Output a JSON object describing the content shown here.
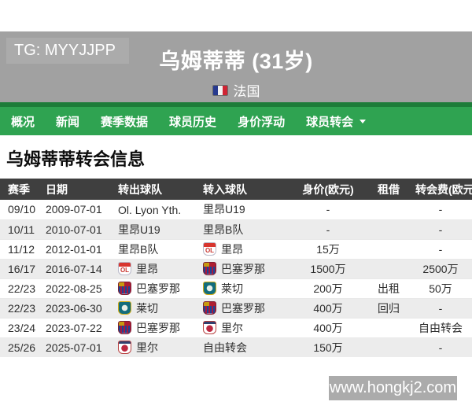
{
  "watermarks": {
    "top_left": "TG: MYYJJPP",
    "bottom_right": "www.hongkj2.com"
  },
  "player_header": {
    "name_and_age": "乌姆蒂蒂 (31岁)",
    "nationality": "法国",
    "flag_icon": "france-flag"
  },
  "nav": {
    "items": [
      {
        "label": "概况",
        "has_dropdown": false
      },
      {
        "label": "新闻",
        "has_dropdown": false
      },
      {
        "label": "赛季数据",
        "has_dropdown": false
      },
      {
        "label": "球员历史",
        "has_dropdown": false
      },
      {
        "label": "身价浮动",
        "has_dropdown": false
      },
      {
        "label": "球员转会",
        "has_dropdown": true
      }
    ]
  },
  "section_title": "乌姆蒂蒂转会信息",
  "table": {
    "columns": [
      "赛季",
      "日期",
      "转出球队",
      "转入球队",
      "身价(欧元)",
      "租借",
      "转会费(欧元)"
    ],
    "rows": [
      {
        "season": "09/10",
        "date": "2009-07-01",
        "from_team": "Ol. Lyon Yth.",
        "from_badge": null,
        "to_team": "里昂U19",
        "to_badge": null,
        "market_value": "-",
        "loan": "",
        "fee": "-"
      },
      {
        "season": "10/11",
        "date": "2010-07-01",
        "from_team": "里昂U19",
        "from_badge": null,
        "to_team": "里昂B队",
        "to_badge": null,
        "market_value": "-",
        "loan": "",
        "fee": "-"
      },
      {
        "season": "11/12",
        "date": "2012-01-01",
        "from_team": "里昂B队",
        "from_badge": null,
        "to_team": "里昂",
        "to_badge": "lyon",
        "market_value": "15万",
        "loan": "",
        "fee": "-"
      },
      {
        "season": "16/17",
        "date": "2016-07-14",
        "from_team": "里昂",
        "from_badge": "lyon",
        "to_team": "巴塞罗那",
        "to_badge": "barcelona",
        "market_value": "1500万",
        "loan": "",
        "fee": "2500万"
      },
      {
        "season": "22/23",
        "date": "2022-08-25",
        "from_team": "巴塞罗那",
        "from_badge": "barcelona",
        "to_team": "莱切",
        "to_badge": "lecce",
        "market_value": "200万",
        "loan": "出租",
        "fee": "50万"
      },
      {
        "season": "22/23",
        "date": "2023-06-30",
        "from_team": "莱切",
        "from_badge": "lecce",
        "to_team": "巴塞罗那",
        "to_badge": "barcelona",
        "market_value": "400万",
        "loan": "回归",
        "fee": "-"
      },
      {
        "season": "23/24",
        "date": "2023-07-22",
        "from_team": "巴塞罗那",
        "from_badge": "barcelona",
        "to_team": "里尔",
        "to_badge": "lille",
        "market_value": "400万",
        "loan": "",
        "fee": "自由转会"
      },
      {
        "season": "25/26",
        "date": "2025-07-01",
        "from_team": "里尔",
        "from_badge": "lille",
        "to_team": "自由转会",
        "to_badge": null,
        "market_value": "150万",
        "loan": "",
        "fee": "-"
      }
    ]
  },
  "colors": {
    "nav_green": "#2fa351",
    "nav_dark_green": "#1d7c39",
    "header_gray": "#a1a1a1",
    "watermark_gray": "#ababab",
    "table_header_bg": "#3f3f3f",
    "row_stripe": "#ececec"
  }
}
